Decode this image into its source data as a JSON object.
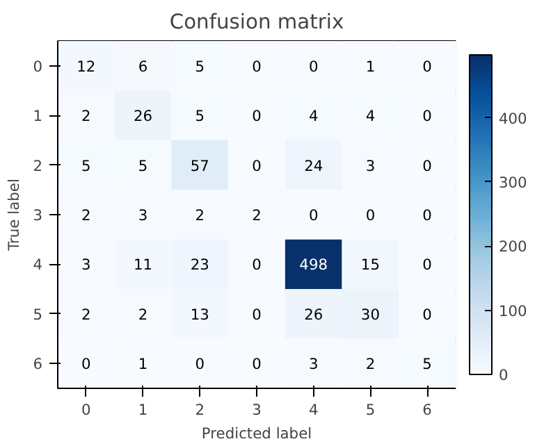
{
  "chart_data": {
    "type": "heatmap",
    "title": "Confusion matrix",
    "xlabel": "Predicted label",
    "ylabel": "True label",
    "categories": [
      "0",
      "1",
      "2",
      "3",
      "4",
      "5",
      "6"
    ],
    "y_categories": [
      "0",
      "1",
      "2",
      "3",
      "4",
      "5",
      "6"
    ],
    "cells": [
      [
        12,
        6,
        5,
        0,
        0,
        1,
        0
      ],
      [
        2,
        26,
        5,
        0,
        4,
        4,
        0
      ],
      [
        5,
        5,
        57,
        0,
        24,
        3,
        0
      ],
      [
        2,
        3,
        2,
        2,
        0,
        0,
        0
      ],
      [
        3,
        11,
        23,
        0,
        498,
        15,
        0
      ],
      [
        2,
        2,
        13,
        0,
        26,
        30,
        0
      ],
      [
        0,
        1,
        0,
        0,
        3,
        2,
        5
      ]
    ],
    "clim": [
      0,
      498
    ],
    "cticks": [
      0,
      100,
      200,
      300,
      400
    ],
    "data_labels": true
  }
}
